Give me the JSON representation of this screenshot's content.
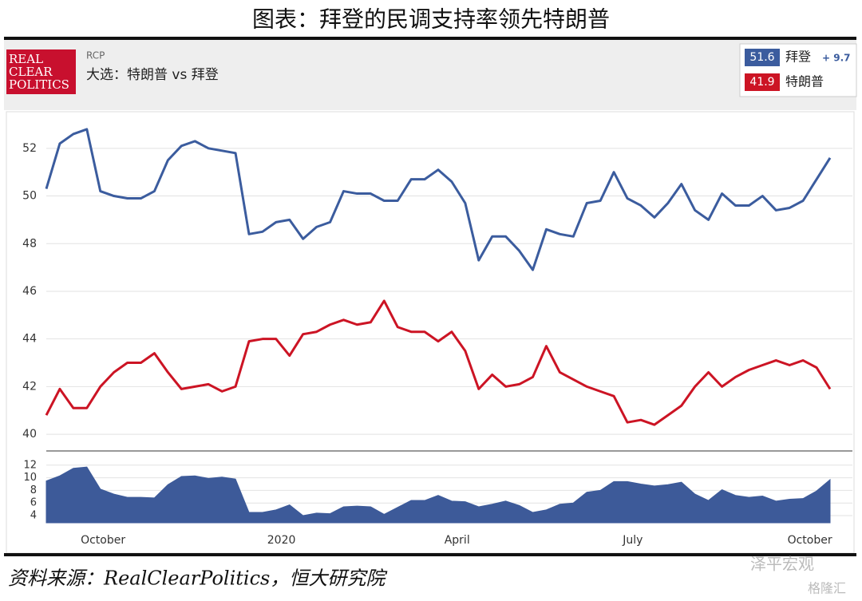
{
  "title": "图表：拜登的民调支持率领先特朗普",
  "source": "资料来源：RealClearPolitics，恒大研究院",
  "watermarks": [
    "泽平宏观",
    "格隆汇"
  ],
  "header": {
    "logo": [
      "REAL",
      "CLEAR",
      "POLITICS"
    ],
    "label": "RCP",
    "subtitle": "大选：特朗普 vs 拜登"
  },
  "chart_data": [
    {
      "type": "line",
      "xlim": [
        0,
        58
      ],
      "ylim": [
        39.3,
        53.2
      ],
      "yticks": [
        40,
        42,
        44,
        46,
        48,
        50,
        52
      ],
      "grid": true,
      "series": [
        {
          "name": "拜登",
          "color": "#3b5c9e",
          "current": 51.6,
          "lead": {
            "value": 9.7,
            "label": "+ 9.7"
          },
          "values": [
            50.3,
            52.2,
            52.6,
            52.8,
            50.2,
            50.0,
            49.9,
            49.9,
            50.2,
            51.5,
            52.1,
            52.3,
            52.0,
            51.9,
            51.8,
            48.4,
            48.5,
            48.9,
            49.0,
            48.2,
            48.7,
            48.9,
            50.2,
            50.1,
            50.1,
            49.8,
            49.8,
            50.7,
            50.7,
            51.1,
            50.6,
            49.7,
            47.3,
            48.3,
            48.3,
            47.7,
            46.9,
            48.6,
            48.4,
            48.3,
            49.7,
            49.8,
            51.0,
            49.9,
            49.6,
            49.1,
            49.7,
            50.5,
            49.4,
            49.0,
            50.1,
            49.6,
            49.6,
            50.0,
            49.4,
            49.5,
            49.8,
            50.7,
            51.6
          ]
        },
        {
          "name": "特朗普",
          "color": "#cc1424",
          "current": 41.9,
          "values": [
            40.8,
            41.9,
            41.1,
            41.1,
            42.0,
            42.6,
            43.0,
            43.0,
            43.4,
            42.6,
            41.9,
            42.0,
            42.1,
            41.8,
            42.0,
            43.9,
            44.0,
            44.0,
            43.3,
            44.2,
            44.3,
            44.6,
            44.8,
            44.6,
            44.7,
            45.6,
            44.5,
            44.3,
            44.3,
            43.9,
            44.3,
            43.5,
            41.9,
            42.5,
            42.0,
            42.1,
            42.4,
            43.7,
            42.6,
            42.3,
            42.0,
            41.8,
            41.6,
            40.5,
            40.6,
            40.4,
            40.8,
            41.2,
            42.0,
            42.6,
            42.0,
            42.4,
            42.7,
            42.9,
            43.1,
            42.9,
            43.1,
            42.8,
            41.9
          ]
        }
      ]
    },
    {
      "type": "area",
      "xlim": [
        0,
        58
      ],
      "ylim": [
        2.86,
        14.0
      ],
      "yticks": [
        4,
        6,
        8,
        10,
        12
      ],
      "xticks": [
        {
          "value": 4.2,
          "label": "October"
        },
        {
          "value": 17.4,
          "label": "2020"
        },
        {
          "value": 30.4,
          "label": "April"
        },
        {
          "value": 43.4,
          "label": "July"
        },
        {
          "value": 56.5,
          "label": "October"
        }
      ],
      "grid": true,
      "color": "#3d5a99",
      "values": [
        9.5,
        10.3,
        11.5,
        11.7,
        8.2,
        7.4,
        6.9,
        6.9,
        6.8,
        8.9,
        10.2,
        10.3,
        9.9,
        10.1,
        9.8,
        4.5,
        4.5,
        4.9,
        5.7,
        4.0,
        4.4,
        4.3,
        5.4,
        5.5,
        5.4,
        4.2,
        5.3,
        6.4,
        6.4,
        7.2,
        6.3,
        6.2,
        5.4,
        5.8,
        6.3,
        5.6,
        4.5,
        4.9,
        5.8,
        6.0,
        7.7,
        8.0,
        9.4,
        9.4,
        9.0,
        8.7,
        8.9,
        9.3,
        7.4,
        6.4,
        8.1,
        7.2,
        6.9,
        7.1,
        6.3,
        6.6,
        6.7,
        7.9,
        9.7
      ]
    }
  ]
}
